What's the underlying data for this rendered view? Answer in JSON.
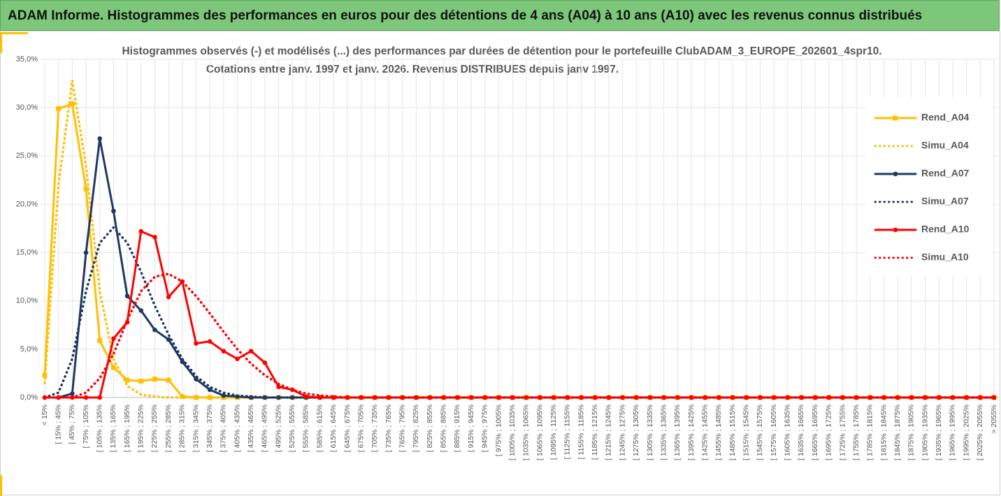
{
  "header": {
    "title": "ADAM Informe. Histogrammes des performances en euros pour des détentions de 4 ans (A04) à 10 ans (A10) avec les revenus connus distribués"
  },
  "chart_data": {
    "type": "line",
    "title": "Histogrammes observés (-) et modélisés (...) des performances par durées de détention pour le portefeuille ClubADAM_3_EUROPE_202601_4spr10.",
    "subtitle": "Cotations entre janv. 1997 et janv. 2026. Revenus DISTRIBUES depuis janv 1997.",
    "categories": [
      "< 15%",
      "[ 15% ; 45%",
      "[ 45% ; 75%",
      "[ 75% ; 105%",
      "[ 105% ; 135%",
      "[ 135% ; 165%",
      "[ 165% ; 195%",
      "[ 195% ; 225%",
      "[ 225% ; 255%",
      "[ 255% ; 285%",
      "[ 285% ; 315%",
      "[ 315% ; 345%",
      "[ 345% ; 375%",
      "[ 375% ; 405%",
      "[ 405% ; 435%",
      "[ 435% ; 465%",
      "[ 465% ; 495%",
      "[ 495% ; 525%",
      "[ 525% ; 555%",
      "[ 555% ; 585%",
      "[ 585% ; 615%",
      "[ 615% ; 645%",
      "[ 645% ; 675%",
      "[ 675% ; 705%",
      "[ 705% ; 735%",
      "[ 735% ; 765%",
      "[ 765% ; 795%",
      "[ 795% ; 825%",
      "[ 825% ; 855%",
      "[ 855% ; 885%",
      "[ 885% ; 915%",
      "[ 915% ; 945%",
      "[ 945% ; 975%",
      "[ 975% ; 1005%",
      "[ 1005% ; 1035%",
      "[ 1035% ; 1065%",
      "[ 1065% ; 1095%",
      "[ 1095% ; 1125%",
      "[ 1125% ; 1155%",
      "[ 1155% ; 1185%",
      "[ 1185% ; 1215%",
      "[ 1215% ; 1245%",
      "[ 1245% ; 1275%",
      "[ 1275% ; 1305%",
      "[ 1305% ; 1335%",
      "[ 1335% ; 1365%",
      "[ 1365% ; 1395%",
      "[ 1395% ; 1425%",
      "[ 1425% ; 1455%",
      "[ 1455% ; 1485%",
      "[ 1485% ; 1515%",
      "[ 1515% ; 1545%",
      "[ 1545% ; 1575%",
      "[ 1575% ; 1605%",
      "[ 1605% ; 1635%",
      "[ 1635% ; 1665%",
      "[ 1665% ; 1695%",
      "[ 1695% ; 1725%",
      "[ 1725% ; 1755%",
      "[ 1755% ; 1785%",
      "[ 1785% ; 1815%",
      "[ 1815% ; 1845%",
      "[ 1845% ; 1875%",
      "[ 1875% ; 1905%",
      "[ 1905% ; 1935%",
      "[ 1935% ; 1965%",
      "[ 1965% ; 1995%",
      "[ 1995% ; 2025%",
      "[ 2025% ; 2055%",
      "> 2055%"
    ],
    "series": [
      {
        "name": "Rend_A04",
        "color": "#ffc000",
        "line_style": "solid",
        "marker": "square",
        "values": [
          2.3,
          29.9,
          30.4,
          21.6,
          5.9,
          3.1,
          1.8,
          1.7,
          1.9,
          1.8,
          0.1,
          0,
          0,
          0,
          0,
          0,
          0,
          0,
          0,
          0,
          0,
          0,
          0,
          0,
          0,
          0,
          0,
          0,
          0,
          0,
          0,
          0,
          0,
          0,
          0,
          0,
          0,
          0,
          0,
          0,
          0,
          0,
          0,
          0,
          0,
          0,
          0,
          0,
          0,
          0,
          0,
          0,
          0,
          0,
          0,
          0,
          0,
          0,
          0,
          0,
          0,
          0,
          0,
          0,
          0,
          0,
          0,
          0,
          0,
          0
        ]
      },
      {
        "name": "Simu_A04",
        "color": "#ffc000",
        "line_style": "dotted",
        "marker": "none",
        "values": [
          1.5,
          22,
          32.8,
          24,
          11,
          4,
          1.2,
          0.3,
          0.1,
          0,
          0,
          0,
          0,
          0,
          0,
          0,
          0,
          0,
          0,
          0,
          0,
          0,
          0,
          0,
          0,
          0,
          0,
          0,
          0,
          0,
          0,
          0,
          0,
          0,
          0,
          0,
          0,
          0,
          0,
          0,
          0,
          0,
          0,
          0,
          0,
          0,
          0,
          0,
          0,
          0,
          0,
          0,
          0,
          0,
          0,
          0,
          0,
          0,
          0,
          0,
          0,
          0,
          0,
          0,
          0,
          0,
          0,
          0,
          0,
          0
        ]
      },
      {
        "name": "Rend_A07",
        "color": "#1f3864",
        "line_style": "solid",
        "marker": "circle",
        "values": [
          0,
          0,
          0.4,
          15,
          26.8,
          19.3,
          10.5,
          9,
          7,
          6,
          3.7,
          1.9,
          0.8,
          0.2,
          0.1,
          0,
          0,
          0,
          0,
          0,
          0,
          0,
          0,
          0,
          0,
          0,
          0,
          0,
          0,
          0,
          0,
          0,
          0,
          0,
          0,
          0,
          0,
          0,
          0,
          0,
          0,
          0,
          0,
          0,
          0,
          0,
          0,
          0,
          0,
          0,
          0,
          0,
          0,
          0,
          0,
          0,
          0,
          0,
          0,
          0,
          0,
          0,
          0,
          0,
          0,
          0,
          0,
          0,
          0,
          0
        ]
      },
      {
        "name": "Simu_A07",
        "color": "#1f3864",
        "line_style": "dotted",
        "marker": "none",
        "values": [
          0,
          0.5,
          4,
          11,
          16,
          17.6,
          16,
          13,
          9.5,
          6.5,
          4,
          2.2,
          1.1,
          0.5,
          0.2,
          0.1,
          0,
          0,
          0,
          0,
          0,
          0,
          0,
          0,
          0,
          0,
          0,
          0,
          0,
          0,
          0,
          0,
          0,
          0,
          0,
          0,
          0,
          0,
          0,
          0,
          0,
          0,
          0,
          0,
          0,
          0,
          0,
          0,
          0,
          0,
          0,
          0,
          0,
          0,
          0,
          0,
          0,
          0,
          0,
          0,
          0,
          0,
          0,
          0,
          0,
          0,
          0,
          0,
          0,
          0
        ]
      },
      {
        "name": "Rend_A10",
        "color": "#ff0000",
        "line_style": "solid",
        "marker": "circle",
        "values": [
          0,
          0,
          0,
          0,
          0,
          6.1,
          7.8,
          17.2,
          16.6,
          10.4,
          12,
          5.6,
          5.8,
          4.8,
          4,
          4.8,
          3.6,
          1.1,
          0.8,
          0.1,
          0,
          0,
          0,
          0,
          0,
          0,
          0,
          0,
          0,
          0,
          0,
          0,
          0,
          0,
          0,
          0,
          0,
          0,
          0,
          0,
          0,
          0,
          0,
          0,
          0,
          0,
          0,
          0,
          0,
          0,
          0,
          0,
          0,
          0,
          0,
          0,
          0,
          0,
          0,
          0,
          0,
          0,
          0,
          0,
          0,
          0,
          0,
          0,
          0,
          0
        ]
      },
      {
        "name": "Simu_A10",
        "color": "#ff0000",
        "line_style": "dotted",
        "marker": "none",
        "values": [
          0,
          0,
          0,
          0.5,
          2,
          4.5,
          8,
          11,
          12.5,
          12.8,
          12,
          10.5,
          8.7,
          6.8,
          5,
          3.5,
          2.3,
          1.4,
          0.8,
          0.4,
          0.2,
          0.1,
          0,
          0,
          0,
          0,
          0,
          0,
          0,
          0,
          0,
          0,
          0,
          0,
          0,
          0,
          0,
          0,
          0,
          0,
          0,
          0,
          0,
          0,
          0,
          0,
          0,
          0,
          0,
          0,
          0,
          0,
          0,
          0,
          0,
          0,
          0,
          0,
          0,
          0,
          0,
          0,
          0,
          0,
          0,
          0,
          0,
          0,
          0,
          0
        ]
      }
    ],
    "ylim": [
      0,
      35
    ],
    "yticks": [
      {
        "value": 0,
        "label": "0,0%"
      },
      {
        "value": 5,
        "label": "5,0%"
      },
      {
        "value": 10,
        "label": "10,0%"
      },
      {
        "value": 15,
        "label": "15,0%"
      },
      {
        "value": 20,
        "label": "20,0%"
      },
      {
        "value": 25,
        "label": "25,0%"
      },
      {
        "value": 30,
        "label": "30,0%"
      },
      {
        "value": 35,
        "label": "35,0%"
      }
    ],
    "grid": true,
    "legend": "right"
  }
}
